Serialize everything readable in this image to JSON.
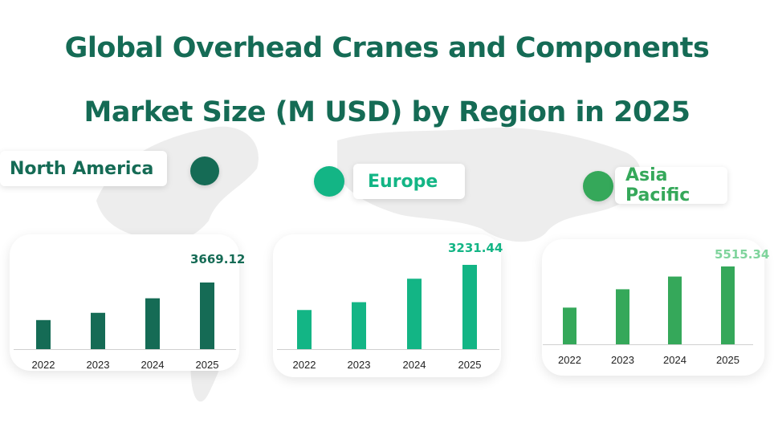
{
  "title": {
    "line1": "Global Overhead Cranes and Components",
    "line2": "Market Size (M USD) by Region in 2025"
  },
  "colors": {
    "title": "#156b55",
    "north_america": "#156b55",
    "europe": "#13b585",
    "asia_pacific": "#35a85a",
    "asia_pacific_value": "#7fd49c"
  },
  "regions": [
    {
      "key": "north_america",
      "label": "North America",
      "color": "#156b55"
    },
    {
      "key": "europe",
      "label": "Europe",
      "color": "#13b585"
    },
    {
      "key": "asia_pacific",
      "label": "Asia Pacific",
      "color": "#35a85a"
    }
  ],
  "chart_data": [
    {
      "type": "bar",
      "categories": [
        "2022",
        "2023",
        "2024",
        "2025"
      ],
      "series": [
        {
          "name": "North America",
          "values": [
            1600,
            2000,
            2800,
            3669.12
          ]
        }
      ],
      "value_label": "3669.12",
      "ylim": [
        0,
        3669.12
      ],
      "grid": false,
      "color": "#156b55"
    },
    {
      "type": "bar",
      "categories": [
        "2022",
        "2023",
        "2024",
        "2025"
      ],
      "series": [
        {
          "name": "Europe",
          "values": [
            1500,
            1800,
            2700,
            3231.44
          ]
        }
      ],
      "value_label": "3231.44",
      "ylim": [
        0,
        3231.44
      ],
      "grid": false,
      "color": "#13b585"
    },
    {
      "type": "bar",
      "categories": [
        "2022",
        "2023",
        "2024",
        "2025"
      ],
      "series": [
        {
          "name": "Asia Pacific",
          "values": [
            2600,
            3900,
            4800,
            5515.34
          ]
        }
      ],
      "value_label": "5515.34",
      "ylim": [
        0,
        5515.34
      ],
      "grid": false,
      "color": "#35a85a",
      "value_label_color": "#7fd49c"
    }
  ]
}
